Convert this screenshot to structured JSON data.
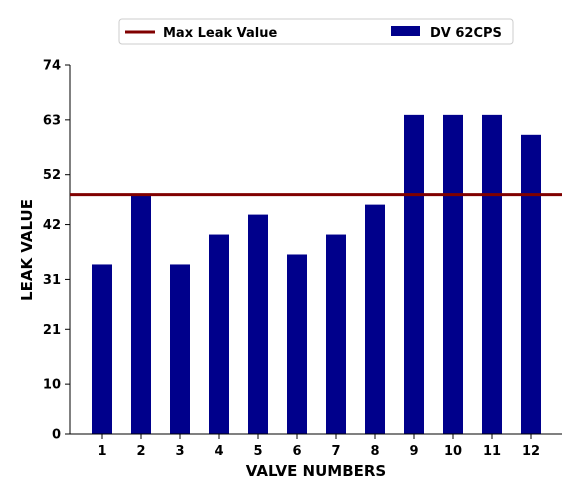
{
  "chart_data": {
    "type": "bar",
    "categories": [
      "1",
      "2",
      "3",
      "4",
      "5",
      "6",
      "7",
      "8",
      "9",
      "10",
      "11",
      "12"
    ],
    "series": [
      {
        "name": "DV 62CPS",
        "color": "#00008b",
        "values": [
          34,
          48,
          34,
          40,
          44,
          36,
          40,
          46,
          64,
          64,
          64,
          60
        ]
      }
    ],
    "reference_line": {
      "name": "Max Leak Value",
      "value": 48,
      "color": "#800000"
    },
    "xlabel": "VALVE NUMBERS",
    "ylabel": "LEAK VALUE",
    "ylim": [
      0,
      74
    ],
    "yticks": [
      0,
      10,
      21,
      31,
      42,
      52,
      63,
      74
    ],
    "grid": false,
    "legend_position": "top"
  }
}
